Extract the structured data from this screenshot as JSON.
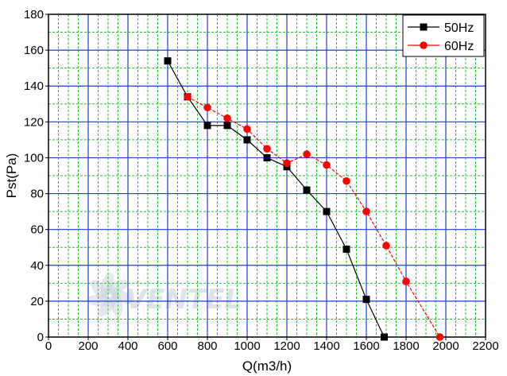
{
  "chart_data": {
    "type": "line",
    "xlabel": "Q(m3/h)",
    "ylabel": "Pst(Pa)",
    "xlim": [
      0,
      2200
    ],
    "ylim": [
      0,
      180
    ],
    "x_ticks": [
      0,
      200,
      400,
      600,
      800,
      1000,
      1200,
      1400,
      1600,
      1800,
      2000,
      2200
    ],
    "y_ticks": [
      0,
      20,
      40,
      60,
      80,
      100,
      120,
      140,
      160,
      180
    ],
    "grid": true,
    "grid_major_color": "#1f3fd0",
    "grid_minor_color": "#22c22e",
    "legend_position": "top-right",
    "watermark": "VENTEL",
    "series": [
      {
        "name": "50Hz",
        "color": "#000000",
        "marker": "square",
        "points": [
          {
            "x": 600,
            "y": 154
          },
          {
            "x": 700,
            "y": 134
          },
          {
            "x": 800,
            "y": 118
          },
          {
            "x": 900,
            "y": 118
          },
          {
            "x": 1000,
            "y": 110
          },
          {
            "x": 1100,
            "y": 100
          },
          {
            "x": 1200,
            "y": 95
          },
          {
            "x": 1300,
            "y": 82
          },
          {
            "x": 1400,
            "y": 70
          },
          {
            "x": 1500,
            "y": 49
          },
          {
            "x": 1600,
            "y": 21
          },
          {
            "x": 1690,
            "y": 0
          }
        ]
      },
      {
        "name": "60Hz",
        "color": "#ff0000",
        "marker": "circle",
        "points": [
          {
            "x": 700,
            "y": 134
          },
          {
            "x": 800,
            "y": 128
          },
          {
            "x": 900,
            "y": 122
          },
          {
            "x": 1000,
            "y": 116
          },
          {
            "x": 1100,
            "y": 105
          },
          {
            "x": 1200,
            "y": 97
          },
          {
            "x": 1300,
            "y": 102
          },
          {
            "x": 1400,
            "y": 96
          },
          {
            "x": 1500,
            "y": 87
          },
          {
            "x": 1600,
            "y": 70
          },
          {
            "x": 1700,
            "y": 51
          },
          {
            "x": 1800,
            "y": 31
          },
          {
            "x": 1970,
            "y": 0
          }
        ]
      }
    ]
  }
}
